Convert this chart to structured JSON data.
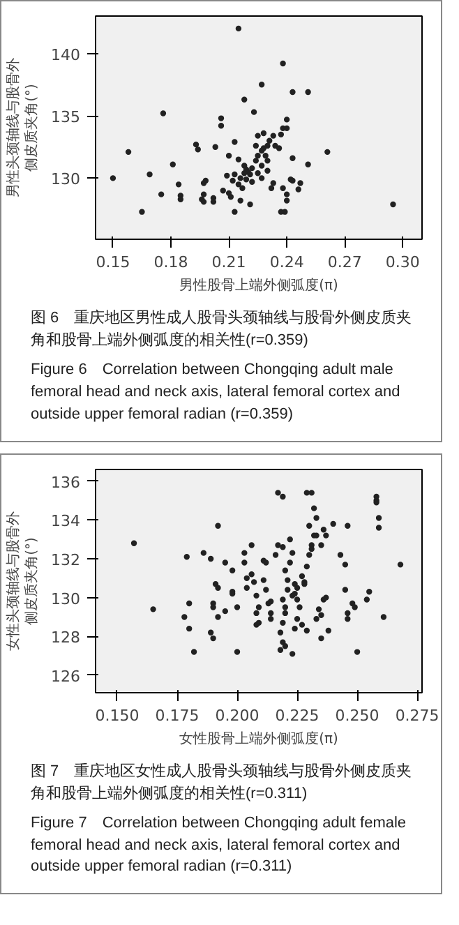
{
  "chart_data": [
    {
      "type": "scatter",
      "xlabel": "男性股骨上端外侧弧度(π)",
      "ylabel": "男性头颈轴线与股骨外侧皮质夹角(°)",
      "annotations": [
        "图 6　重庆地区男性成人股骨头颈轴线与股骨外侧皮质夹角和股骨上端外侧弧度的相关性(r=0.359)",
        "Figure 6　Correlation between Chongqing adult male femoral head and neck axis, lateral femoral cortex and outside upper femoral radian (r=0.359)"
      ],
      "xlim": [
        0.141,
        0.31
      ],
      "ylim": [
        125.1,
        143
      ],
      "xticks": [
        0.15,
        0.18,
        0.21,
        0.24,
        0.27,
        {
          "value": 0.3,
          "label": "0.30"
        }
      ],
      "yticks": [
        130,
        135,
        140
      ],
      "marker": "circle",
      "grid": false,
      "series": [
        {
          "color": "#222222",
          "x": [
            0.215,
            0.238,
            0.227,
            0.243,
            0.251,
            0.218,
            0.176,
            0.223,
            0.206,
            0.206,
            0.24,
            0.238,
            0.24,
            0.237,
            0.158,
            0.261,
            0.193,
            0.194,
            0.203,
            0.213,
            0.21,
            0.169,
            0.181,
            0.15,
            0.251,
            0.243,
            0.243,
            0.242,
            0.184,
            0.185,
            0.185,
            0.175,
            0.165,
            0.198,
            0.197,
            0.197,
            0.196,
            0.197,
            0.202,
            0.202,
            0.207,
            0.21,
            0.211,
            0.213,
            0.216,
            0.221,
            0.217,
            0.215,
            0.219,
            0.222,
            0.232,
            0.233,
            0.238,
            0.24,
            0.24,
            0.237,
            0.239,
            0.246,
            0.247,
            0.295,
            0.215,
            0.218,
            0.219,
            0.22,
            0.221,
            0.222,
            0.218,
            0.216,
            0.213,
            0.212,
            0.209,
            0.224,
            0.225,
            0.227,
            0.228,
            0.23,
            0.231,
            0.233,
            0.228,
            0.225,
            0.224,
            0.234,
            0.236,
            0.229,
            0.23,
            0.227,
            0.225,
            0.227,
            0.23
          ],
          "values": [
            142.0,
            139.2,
            137.5,
            136.9,
            136.9,
            136.3,
            135.2,
            135.3,
            134.8,
            134.2,
            134.7,
            134.0,
            134.0,
            133.5,
            132.1,
            132.1,
            132.7,
            132.3,
            132.5,
            132.9,
            131.8,
            130.3,
            131.1,
            130.0,
            131.1,
            131.6,
            129.8,
            129.9,
            129.5,
            128.6,
            128.3,
            128.7,
            127.3,
            129.8,
            129.6,
            128.7,
            128.3,
            128.1,
            128.4,
            128.1,
            129.0,
            128.8,
            128.5,
            127.3,
            128.2,
            127.9,
            129.2,
            129.5,
            129.9,
            129.7,
            129.2,
            129.6,
            129.2,
            128.7,
            128.2,
            127.3,
            127.3,
            129.1,
            129.6,
            127.9,
            131.5,
            131.0,
            130.7,
            130.5,
            130.3,
            130.8,
            130.4,
            130.0,
            130.3,
            129.8,
            130.2,
            131.4,
            131.8,
            132.2,
            132.4,
            132.6,
            133.0,
            133.4,
            133.6,
            133.4,
            132.6,
            132.6,
            132.4,
            131.8,
            131.4,
            131.0,
            130.4,
            130.0,
            130.6
          ]
        }
      ]
    },
    {
      "type": "scatter",
      "xlabel": "女性股骨上端外侧弧度(π)",
      "ylabel": "女性头颈轴线与股骨外侧皮质夹角(°)",
      "annotations": [
        "图 7　重庆地区女性成人股骨头颈轴线与股骨外侧皮质夹角和股骨上端外侧弧度的相关性(r=0.311)",
        "Figure 7　Correlation between Chongqing adult female femoral head and neck axis, lateral femoral cortex and outside upper femoral radian (r=0.311)"
      ],
      "xlim": [
        0.141,
        0.277
      ],
      "ylim": [
        125.1,
        136.6
      ],
      "xticks": [
        {
          "value": 0.15,
          "label": "0.150"
        },
        0.175,
        {
          "value": 0.2,
          "label": "0.200"
        },
        0.225,
        {
          "value": 0.25,
          "label": "0.250"
        },
        0.275
      ],
      "yticks": [
        126,
        128,
        130,
        132,
        134,
        136
      ],
      "marker": "circle",
      "grid": false,
      "series": [
        {
          "color": "#222222",
          "x": [
            0.157,
            0.165,
            0.178,
            0.179,
            0.18,
            0.18,
            0.182,
            0.186,
            0.189,
            0.192,
            0.19,
            0.19,
            0.189,
            0.19,
            0.191,
            0.192,
            0.192,
            0.195,
            0.195,
            0.198,
            0.198,
            0.198,
            0.2,
            0.2,
            0.203,
            0.203,
            0.204,
            0.204,
            0.206,
            0.206,
            0.207,
            0.208,
            0.209,
            0.208,
            0.208,
            0.209,
            0.211,
            0.212,
            0.211,
            0.212,
            0.213,
            0.214,
            0.214,
            0.214,
            0.216,
            0.217,
            0.219,
            0.217,
            0.219,
            0.22,
            0.221,
            0.221,
            0.219,
            0.22,
            0.22,
            0.219,
            0.218,
            0.219,
            0.22,
            0.218,
            0.223,
            0.222,
            0.223,
            0.222,
            0.224,
            0.225,
            0.224,
            0.223,
            0.225,
            0.226,
            0.225,
            0.227,
            0.224,
            0.227,
            0.228,
            0.228,
            0.229,
            0.23,
            0.231,
            0.231,
            0.232,
            0.233,
            0.232,
            0.229,
            0.231,
            0.23,
            0.233,
            0.235,
            0.237,
            0.236,
            0.233,
            0.229,
            0.234,
            0.235,
            0.236,
            0.237,
            0.238,
            0.235,
            0.24,
            0.243,
            0.246,
            0.245,
            0.245,
            0.248,
            0.249,
            0.246,
            0.246,
            0.25,
            0.254,
            0.255,
            0.258,
            0.258,
            0.258,
            0.259,
            0.259,
            0.261,
            0.268
          ],
          "values": [
            132.8,
            129.4,
            129.0,
            132.1,
            129.7,
            128.4,
            127.2,
            132.3,
            132.0,
            133.7,
            129.7,
            129.5,
            128.2,
            127.9,
            130.7,
            130.5,
            129.0,
            129.3,
            131.8,
            131.4,
            130.3,
            130.2,
            129.5,
            127.2,
            132.3,
            131.8,
            131.0,
            130.5,
            132.7,
            131.2,
            130.8,
            130.1,
            129.5,
            129.2,
            128.6,
            128.7,
            131.9,
            131.8,
            130.9,
            130.4,
            129.7,
            129.8,
            129.2,
            128.9,
            132.2,
            132.7,
            132.6,
            135.4,
            135.2,
            131.4,
            130.9,
            130.4,
            129.9,
            129.5,
            129.2,
            128.7,
            128.2,
            127.7,
            127.5,
            127.3,
            127.1,
            133.0,
            132.3,
            131.8,
            130.7,
            130.5,
            130.2,
            130.1,
            129.9,
            129.5,
            128.9,
            128.6,
            128.4,
            131.1,
            130.8,
            130.7,
            131.6,
            132.2,
            132.5,
            132.7,
            133.2,
            134.1,
            134.6,
            135.4,
            135.4,
            133.7,
            133.2,
            132.7,
            133.2,
            133.5,
            128.9,
            128.3,
            129.4,
            129.1,
            129.9,
            130.0,
            128.3,
            127.9,
            133.8,
            132.2,
            133.7,
            131.7,
            130.4,
            129.7,
            129.5,
            129.2,
            128.9,
            127.2,
            129.9,
            130.3,
            135.0,
            135.2,
            134.9,
            133.6,
            134.1,
            129.0,
            131.7
          ]
        }
      ]
    }
  ]
}
